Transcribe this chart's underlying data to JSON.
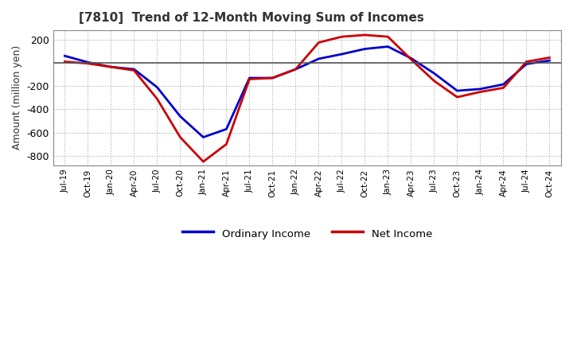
{
  "title": "[7810]  Trend of 12-Month Moving Sum of Incomes",
  "ylabel": "Amount (million yen)",
  "background_color": "#ffffff",
  "grid_color": "#aaaaaa",
  "plot_bg_color": "#ffffff",
  "ordinary_income_color": "#0000cc",
  "net_income_color": "#cc0000",
  "ylim": [
    -880,
    280
  ],
  "yticks": [
    -800,
    -600,
    -400,
    -200,
    0,
    200
  ],
  "x_labels": [
    "Jul-19",
    "Oct-19",
    "Jan-20",
    "Apr-20",
    "Jul-20",
    "Oct-20",
    "Jan-21",
    "Apr-21",
    "Jul-21",
    "Oct-21",
    "Jan-22",
    "Apr-22",
    "Jul-22",
    "Oct-22",
    "Jan-23",
    "Apr-23",
    "Jul-23",
    "Oct-23",
    "Jan-24",
    "Apr-24",
    "Jul-24",
    "Oct-24"
  ],
  "ordinary_income": [
    60,
    5,
    -35,
    -55,
    -210,
    -460,
    -640,
    -570,
    -130,
    -130,
    -55,
    35,
    75,
    120,
    140,
    40,
    -90,
    -240,
    -225,
    -185,
    -10,
    20
  ],
  "net_income": [
    10,
    -5,
    -35,
    -65,
    -310,
    -640,
    -850,
    -700,
    -140,
    -130,
    -55,
    175,
    225,
    240,
    225,
    30,
    -155,
    -295,
    -250,
    -215,
    10,
    45
  ]
}
